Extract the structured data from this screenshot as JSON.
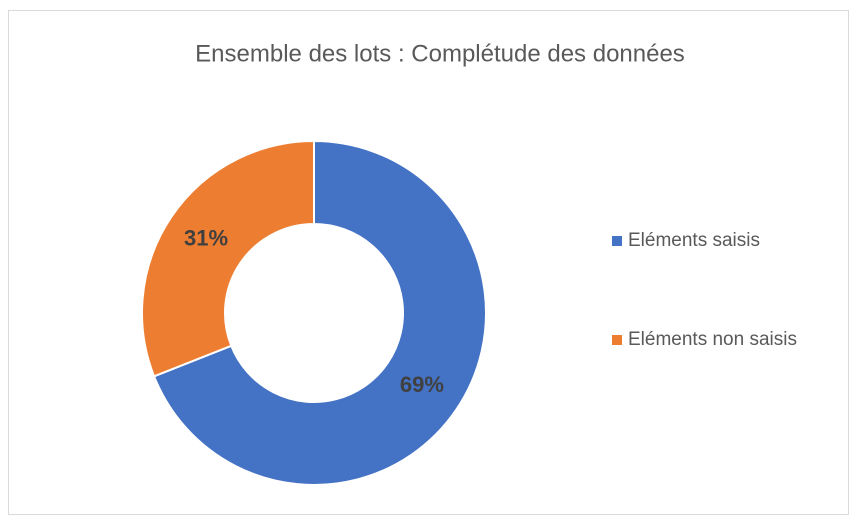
{
  "chart_data": {
    "type": "donut",
    "title": "Ensemble des lots : Complétude des données",
    "categories": [
      "Eléments saisis",
      "Eléments non saisis"
    ],
    "values": [
      69,
      31
    ],
    "value_labels": [
      "69%",
      "31%"
    ],
    "colors": [
      "#4472c4",
      "#ed7d31"
    ],
    "legend": "right"
  }
}
